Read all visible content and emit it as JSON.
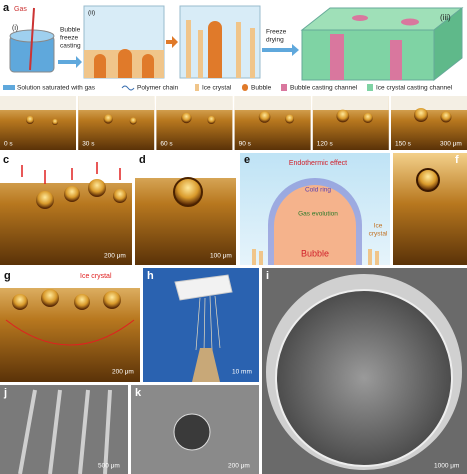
{
  "panel_a": {
    "label": "a",
    "step_1": "(i)",
    "gas": "Gas",
    "arrow_1": [
      "Bubble",
      "freeze",
      "casting"
    ],
    "step_2": "(ii)",
    "arrow_2": [
      "Freeze",
      "drying"
    ],
    "step_3": "(iii)",
    "legend": [
      "Solution saturated with gas",
      "Polymer chain",
      "Ice crystal",
      "Bubble",
      "Bubble casting channel",
      "Ice crystal casting channel"
    ]
  },
  "panel_b": {
    "label": "b",
    "times": [
      "0 s",
      "30 s",
      "60 s",
      "90 s",
      "120 s",
      "150 s"
    ],
    "scale_bar": "300 μm"
  },
  "panel_c": {
    "label": "c",
    "scale_bar": "200 μm"
  },
  "panel_d": {
    "label": "d",
    "scale_bar": "100 μm"
  },
  "panel_e": {
    "label": "e",
    "title": "Endothermic effect",
    "cold_ring": "Cold ring",
    "gas_evolution": "Gas evolution",
    "ice_crystal": [
      "Ice",
      "crystal"
    ],
    "bubble": "Bubble"
  },
  "panel_f": {
    "label": "f"
  },
  "panel_g": {
    "label": "g",
    "annotation": "Ice crystal",
    "scale_bar": "200 μm"
  },
  "panel_h": {
    "label": "h",
    "scale_bar": "10 mm"
  },
  "panel_i": {
    "label": "i",
    "scale_bar": "1000 μm"
  },
  "panel_j": {
    "label": "j",
    "scale_bar": "500 μm"
  },
  "panel_k": {
    "label": "k",
    "scale_bar": "200 μm"
  }
}
